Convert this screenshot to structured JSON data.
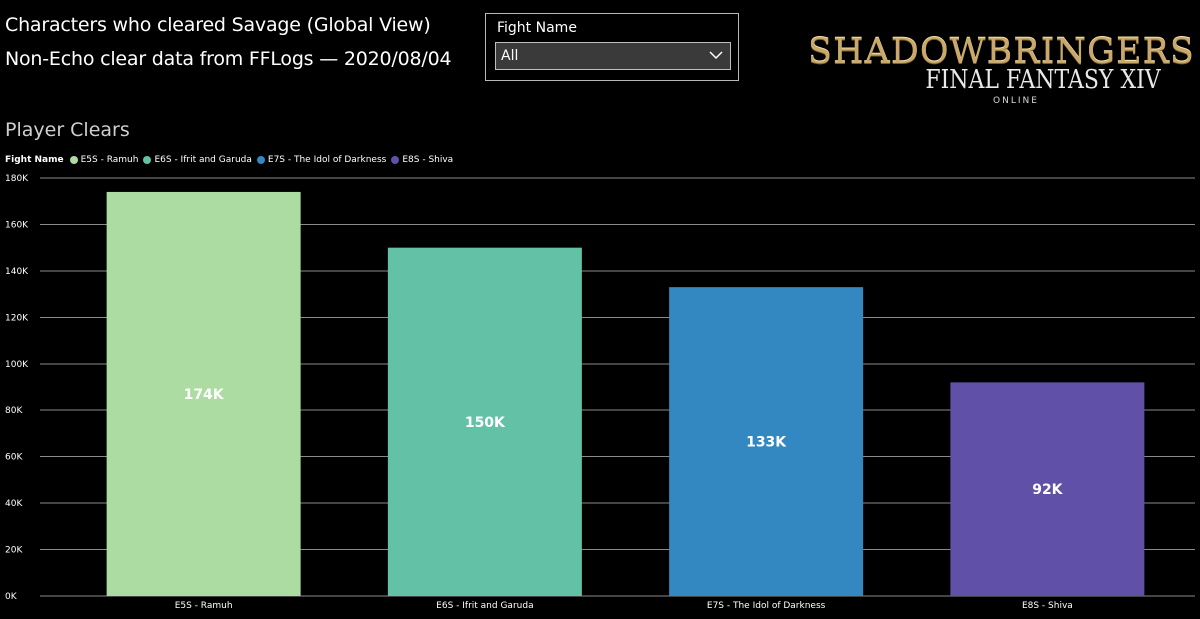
{
  "header": {
    "title": "Characters who cleared Savage (Global View)",
    "subtitle": "Non-Echo clear data from FFLogs — 2020/08/04"
  },
  "slicer": {
    "label": "Fight Name",
    "selected": "All"
  },
  "logo": {
    "main": "SHADOWBRINGERS",
    "sub": "FINAL FANTASY XIV",
    "tag": "ONLINE"
  },
  "chart_data": {
    "type": "bar",
    "title": "Player Clears",
    "legend_title": "Fight Name",
    "legend_position": "top-left",
    "categories": [
      "E5S - Ramuh",
      "E6S - Ifrit and Garuda",
      "E7S - The Idol of Darkness",
      "E8S - Shiva"
    ],
    "values": [
      174000,
      150000,
      133000,
      92000
    ],
    "data_labels": [
      "174K",
      "150K",
      "133K",
      "92K"
    ],
    "colors": [
      "#acdca2",
      "#63c2a5",
      "#3388c1",
      "#6150a7"
    ],
    "ylim": [
      0,
      180000
    ],
    "yticks": [
      0,
      20000,
      40000,
      60000,
      80000,
      100000,
      120000,
      140000,
      160000,
      180000
    ],
    "ytick_labels": [
      "0K",
      "20K",
      "40K",
      "60K",
      "80K",
      "100K",
      "120K",
      "140K",
      "160K",
      "180K"
    ],
    "grid": true,
    "xlabel": "",
    "ylabel": ""
  }
}
